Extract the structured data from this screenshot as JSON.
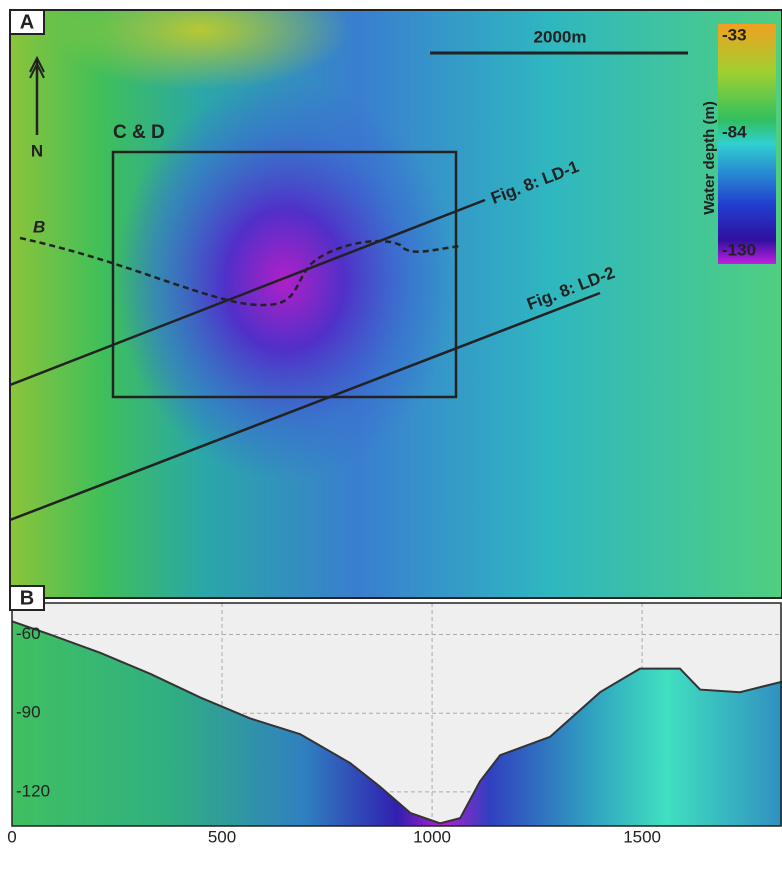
{
  "map": {
    "panel_label": "A",
    "scale_bar": "2000m",
    "north": "N",
    "box_label": "C & D",
    "profile_label": "B",
    "line_1": "Fig. 8: LD-1",
    "line_2": "Fig. 8: LD-2",
    "colorbar": {
      "title": "Water depth (m)",
      "labels": [
        "-33",
        "-84",
        "-130"
      ]
    }
  },
  "chart_data": {
    "type": "area",
    "panel_label": "B",
    "x": [
      0,
      90,
      210,
      329,
      448,
      567,
      686,
      805,
      876,
      948,
      1019,
      1067,
      1114,
      1162,
      1281,
      1400,
      1495,
      1590,
      1638,
      1733,
      1833
    ],
    "values": [
      -55,
      -60,
      -67,
      -75,
      -84,
      -92,
      -98,
      -109,
      -118,
      -128,
      -132,
      -130,
      -116,
      -106,
      -99,
      -82,
      -73,
      -73,
      -81,
      -82,
      -78
    ],
    "xlim": [
      0,
      1833
    ],
    "ylim": [
      -133,
      -48
    ],
    "xticks": [
      0,
      500,
      1000,
      1500
    ],
    "yticks": [
      -60,
      -90,
      -120
    ],
    "grid": true,
    "color": "#333333"
  }
}
